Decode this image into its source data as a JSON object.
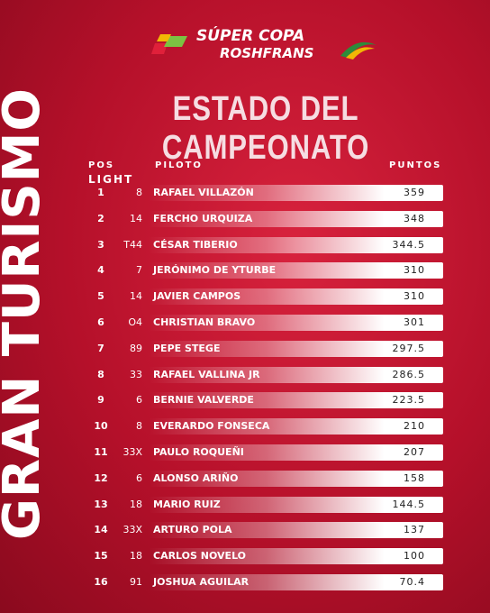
{
  "header": {
    "brand_top": "SÚPER COPA",
    "brand_bottom": "ROSHFRANS",
    "title": "ESTADO DEL CAMPEONATO",
    "side_title": "GRAN TURISMO"
  },
  "table": {
    "columns": [
      "POS",
      "LIGHT",
      "PILOTO",
      "PUNTOS"
    ],
    "rows": [
      [
        "1",
        "8",
        "RAFAEL VILLAZÓN",
        "359"
      ],
      [
        "2",
        "14",
        "FERCHO URQUIZA",
        "348"
      ],
      [
        "3",
        "T44",
        "CÉSAR TIBERIO",
        "344.5"
      ],
      [
        "4",
        "7",
        "JERÓNIMO DE YTURBE",
        "310"
      ],
      [
        "5",
        "14",
        "JAVIER CAMPOS",
        "310"
      ],
      [
        "6",
        "O4",
        "CHRISTIAN BRAVO",
        "301"
      ],
      [
        "7",
        "89",
        "PEPE STEGE",
        "297.5"
      ],
      [
        "8",
        "33",
        "RAFAEL VALLINA JR",
        "286.5"
      ],
      [
        "9",
        "6",
        "BERNIE VALVERDE",
        "223.5"
      ],
      [
        "10",
        "8",
        "EVERARDO FONSECA",
        "210"
      ],
      [
        "11",
        "33X",
        "PAULO ROQUEÑI",
        "207"
      ],
      [
        "12",
        "6",
        "ALONSO ARIÑO",
        "158"
      ],
      [
        "13",
        "18",
        "MARIO RUIZ",
        "144.5"
      ],
      [
        "14",
        "33X",
        "ARTURO POLA",
        "137"
      ],
      [
        "15",
        "18",
        "CARLOS NOVELO",
        "100"
      ],
      [
        "16",
        "91",
        "JOSHUA AGUILAR",
        "70.4"
      ]
    ]
  }
}
